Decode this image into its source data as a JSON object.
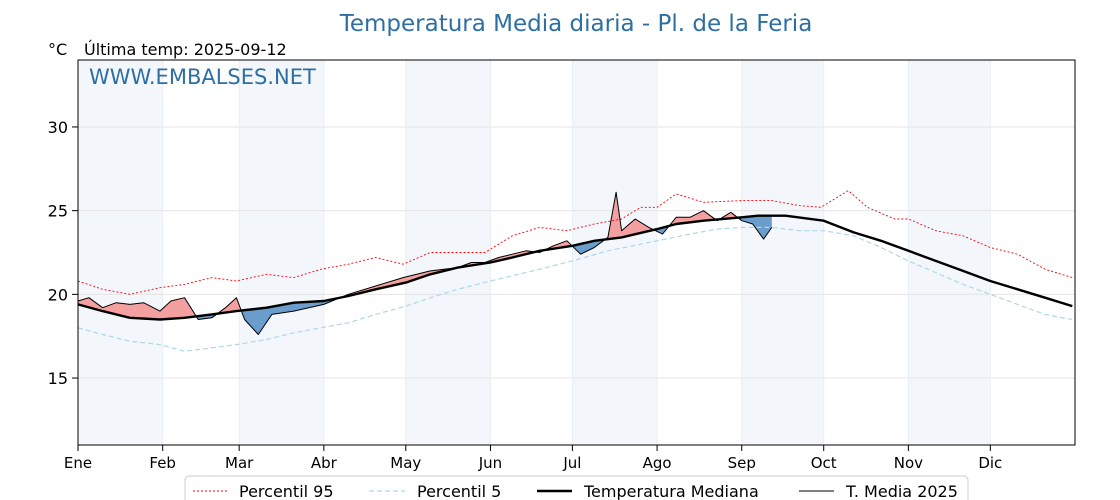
{
  "chart_data": {
    "type": "line",
    "title": "Temperatura Media diaria - Pl. de la Feria",
    "ylabel": "°C",
    "last_temp_text": "Última temp: 2025-09-12",
    "watermark": "WWW.EMBALSES.NET",
    "ylim": [
      11,
      34
    ],
    "yticks": [
      15,
      20,
      25,
      30
    ],
    "months": [
      "Ene",
      "Feb",
      "Mar",
      "Abr",
      "May",
      "Jun",
      "Jul",
      "Ago",
      "Sep",
      "Oct",
      "Nov",
      "Dic"
    ],
    "month_start_days": [
      1,
      32,
      60,
      91,
      121,
      152,
      182,
      213,
      244,
      274,
      305,
      335
    ],
    "grid": true,
    "legend_position": "bottom",
    "colors": {
      "p95": "#ff0000",
      "p5": "#add8e6",
      "median": "#000000",
      "year2025": "#000000",
      "above_fill": "#f4a0a0",
      "below_fill": "#6a9ccc",
      "title": "#2e6fa3",
      "month_band": "#f3f7fc"
    },
    "series": [
      {
        "name": "Percentil 95",
        "key": "p95",
        "style": "dotted",
        "x": [
          1,
          10,
          20,
          31,
          40,
          50,
          59,
          70,
          80,
          90,
          100,
          110,
          120,
          130,
          140,
          150,
          160,
          170,
          180,
          190,
          200,
          207,
          213,
          220,
          230,
          244,
          255,
          265,
          273,
          283,
          290,
          300,
          305,
          315,
          325,
          335,
          345,
          355,
          365
        ],
        "values": [
          20.8,
          20.3,
          20.0,
          20.4,
          20.6,
          21.0,
          20.8,
          21.2,
          21.0,
          21.5,
          21.8,
          22.2,
          21.8,
          22.5,
          22.5,
          22.5,
          23.5,
          24.0,
          23.8,
          24.2,
          24.5,
          25.2,
          25.2,
          26.0,
          25.5,
          25.6,
          25.6,
          25.3,
          25.2,
          26.2,
          25.2,
          24.5,
          24.5,
          23.8,
          23.5,
          22.8,
          22.4,
          21.5,
          21.0
        ]
      },
      {
        "name": "Percentil 5",
        "key": "p5",
        "style": "dashed",
        "x": [
          1,
          10,
          20,
          31,
          40,
          50,
          59,
          70,
          80,
          90,
          100,
          110,
          121,
          130,
          140,
          152,
          165,
          182,
          195,
          213,
          225,
          235,
          244,
          255,
          265,
          274,
          285,
          295,
          305,
          315,
          325,
          335,
          345,
          355,
          365
        ],
        "values": [
          18.0,
          17.6,
          17.2,
          17.0,
          16.6,
          16.8,
          17.0,
          17.3,
          17.7,
          18.0,
          18.3,
          18.8,
          19.3,
          19.8,
          20.3,
          20.8,
          21.3,
          22.0,
          22.6,
          23.2,
          23.6,
          23.9,
          24.0,
          24.0,
          23.8,
          23.8,
          23.5,
          22.8,
          22.0,
          21.3,
          20.6,
          20.0,
          19.4,
          18.8,
          18.5
        ]
      },
      {
        "name": "Temperatura Mediana",
        "key": "median",
        "style": "thick",
        "x": [
          1,
          10,
          20,
          31,
          40,
          50,
          59,
          70,
          80,
          91,
          100,
          110,
          121,
          130,
          140,
          152,
          160,
          170,
          182,
          190,
          200,
          213,
          220,
          230,
          244,
          250,
          260,
          274,
          285,
          295,
          305,
          315,
          325,
          335,
          345,
          355,
          365
        ],
        "values": [
          19.4,
          19.0,
          18.6,
          18.5,
          18.6,
          18.8,
          19.0,
          19.2,
          19.5,
          19.6,
          19.9,
          20.3,
          20.7,
          21.2,
          21.6,
          21.9,
          22.2,
          22.6,
          22.9,
          23.2,
          23.4,
          23.9,
          24.2,
          24.4,
          24.6,
          24.7,
          24.7,
          24.4,
          23.7,
          23.2,
          22.6,
          22.0,
          21.4,
          20.8,
          20.3,
          19.8,
          19.3
        ]
      },
      {
        "name": "T. Media 2025",
        "key": "year2025",
        "style": "thin",
        "x": [
          1,
          5,
          10,
          15,
          20,
          25,
          31,
          35,
          40,
          45,
          50,
          55,
          59,
          62,
          67,
          72,
          80,
          91,
          100,
          110,
          120,
          130,
          140,
          145,
          150,
          155,
          160,
          165,
          170,
          175,
          180,
          185,
          190,
          195,
          198,
          200,
          205,
          210,
          215,
          220,
          225,
          230,
          235,
          240,
          244,
          248,
          252,
          255
        ],
        "values": [
          19.6,
          19.8,
          19.2,
          19.5,
          19.4,
          19.5,
          19.0,
          19.6,
          19.8,
          18.5,
          18.6,
          19.2,
          19.8,
          18.5,
          17.6,
          18.8,
          19.0,
          19.4,
          20.0,
          20.5,
          21.0,
          21.4,
          21.6,
          21.9,
          21.9,
          22.2,
          22.4,
          22.6,
          22.5,
          22.9,
          23.2,
          22.4,
          22.8,
          23.4,
          26.1,
          23.8,
          24.5,
          24.0,
          23.6,
          24.6,
          24.6,
          25.0,
          24.4,
          24.9,
          24.4,
          24.2,
          23.3,
          24.0
        ]
      }
    ]
  },
  "legend": {
    "p95": "Percentil 95",
    "p5": "Percentil 5",
    "median": "Temperatura Mediana",
    "year2025": "T. Media 2025"
  }
}
